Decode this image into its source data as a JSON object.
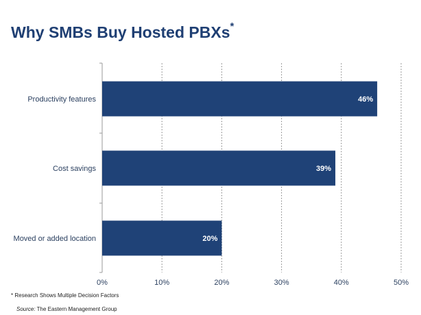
{
  "title": "Why SMBs Buy Hosted PBXs",
  "title_marker": "*",
  "footnote": {
    "marker": "*",
    "text": "Research Shows Multiple Decision Factors"
  },
  "source": {
    "label": "Source:",
    "text": "The Eastern Management Group"
  },
  "colors": {
    "bar": "#1f4277",
    "title": "#1f3f73",
    "grid": "#9a9a9a"
  },
  "chart_data": {
    "type": "bar",
    "orientation": "horizontal",
    "categories": [
      "Productivity features",
      "Cost savings",
      "Moved or added location"
    ],
    "values": [
      46,
      39,
      20
    ],
    "data_labels": [
      "46%",
      "39%",
      "20%"
    ],
    "xlim": [
      0,
      50
    ],
    "x_ticks": [
      0,
      10,
      20,
      30,
      40,
      50
    ],
    "x_tick_labels": [
      "0%",
      "10%",
      "20%",
      "30%",
      "40%",
      "50%"
    ],
    "grid": "vertical dashed",
    "xlabel": "",
    "ylabel": ""
  }
}
